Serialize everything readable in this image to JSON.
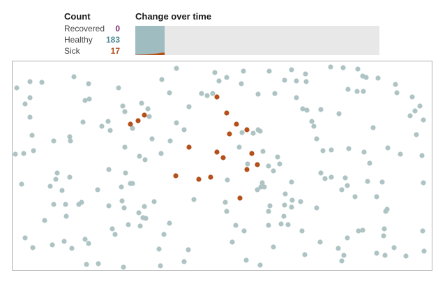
{
  "count_panel": {
    "title": "Count",
    "rows": [
      {
        "label": "Recovered",
        "value": "0",
        "color": "#7b2d73"
      },
      {
        "label": "Healthy",
        "value": "183",
        "color": "#4f8a94"
      },
      {
        "label": "Sick",
        "value": "17",
        "color": "#b5501a"
      }
    ]
  },
  "change_panel": {
    "title": "Change over time",
    "fill_fraction": 0.12,
    "background_color": "#e8e8e8",
    "series": [
      {
        "name": "Healthy",
        "color": "#9fbcc0",
        "values": [
          0.99,
          0.985,
          0.98,
          0.975,
          0.965,
          0.955,
          0.94,
          0.92,
          0.915
        ]
      },
      {
        "name": "Sick",
        "color": "#b5501a",
        "values": [
          0.01,
          0.015,
          0.02,
          0.025,
          0.035,
          0.045,
          0.06,
          0.08,
          0.085
        ]
      }
    ]
  },
  "simulation": {
    "colors": {
      "healthy": "#aec3c3",
      "sick": "#b5501a",
      "recovered": "#7b2d73"
    },
    "counts": {
      "healthy": 183,
      "sick": 17,
      "recovered": 0
    }
  }
}
